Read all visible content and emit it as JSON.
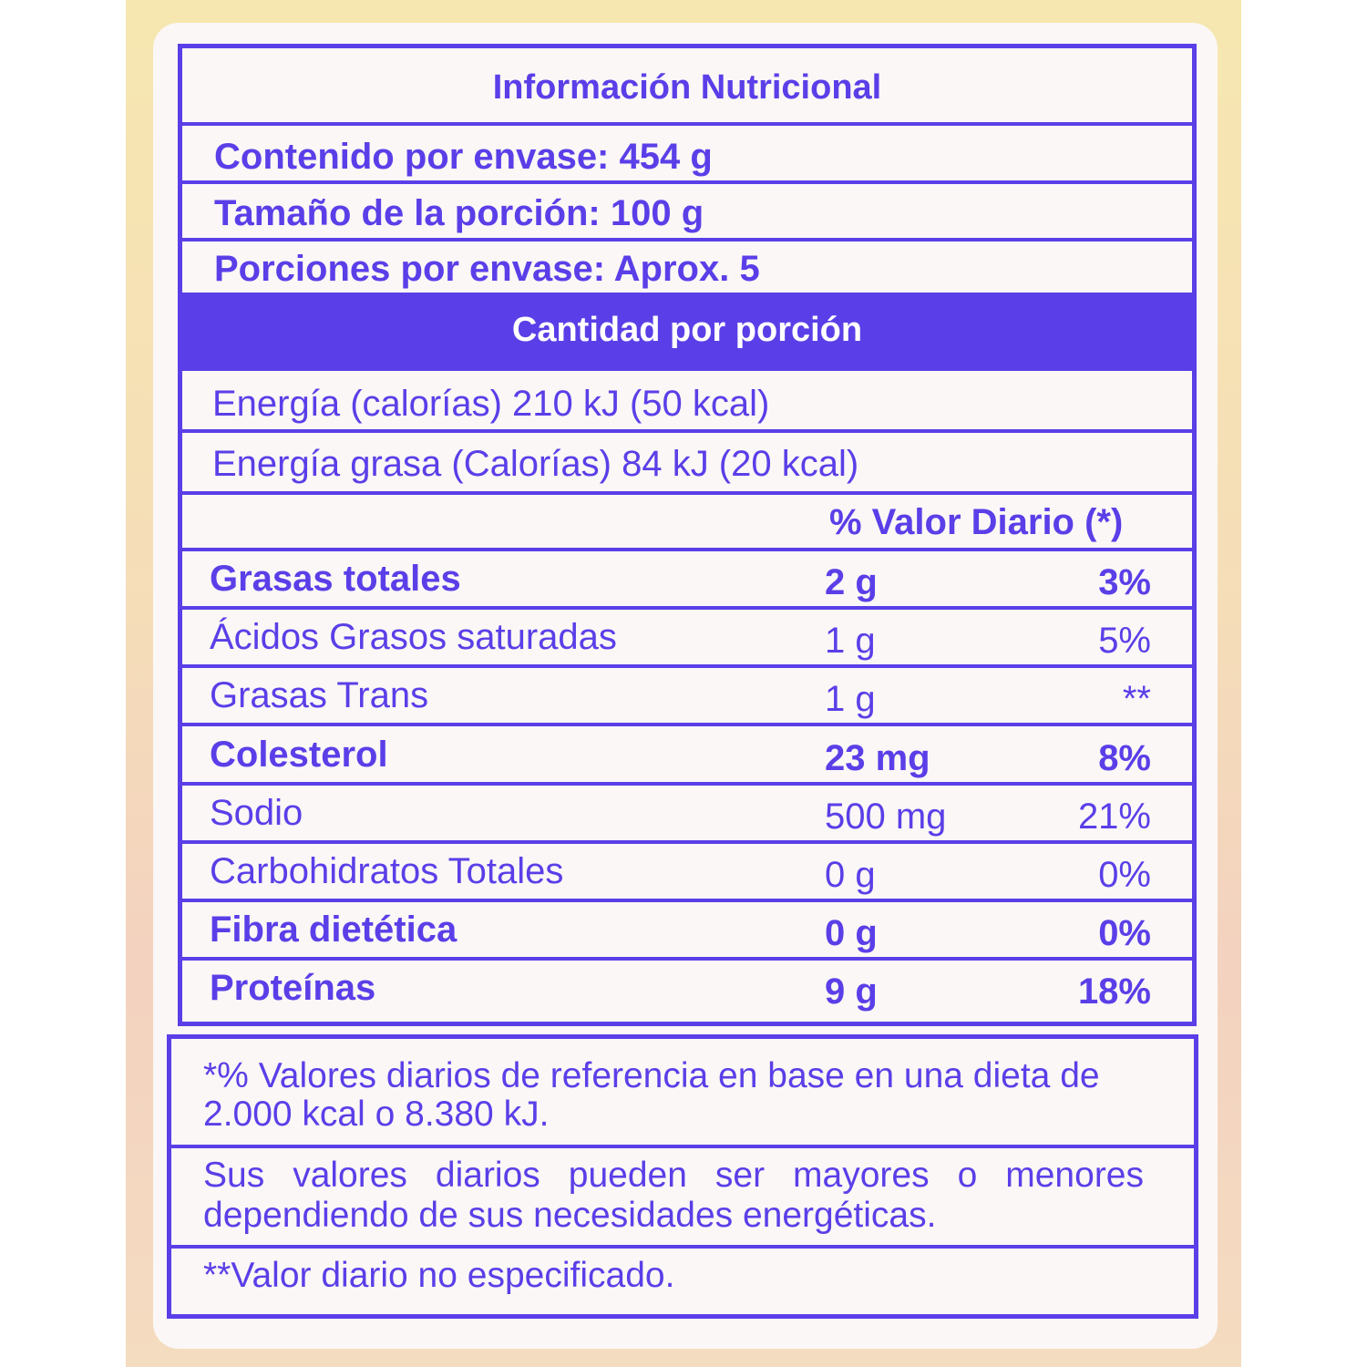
{
  "title": "Información Nutricional",
  "contenido": "Contenido por envase: 454 g",
  "porcion": "Tamaño de la porción: 100 g",
  "porciones": "Porciones por envase: Aprox. 5",
  "cantidad": "Cantidad por porción",
  "energia": "Energía (calorías) 210 kJ (50 kcal)",
  "energia_grasa": "Energía grasa (Calorías) 84 kJ (20 kcal)",
  "vd_header": "% Valor Diario (*)",
  "nutrients": [
    {
      "name": "Grasas totales",
      "amount": "2 g",
      "dv": "3%",
      "bold": true
    },
    {
      "name": "Ácidos Grasos saturadas",
      "amount": "1 g",
      "dv": "5%",
      "bold": false
    },
    {
      "name": "Grasas Trans",
      "amount": "1 g",
      "dv": "**",
      "bold": false
    },
    {
      "name": "Colesterol",
      "amount": "23 mg",
      "dv": "8%",
      "bold": true
    },
    {
      "name": "Sodio",
      "amount": "500 mg",
      "dv": "21%",
      "bold": false
    },
    {
      "name": "Carbohidratos Totales",
      "amount": "0 g",
      "dv": "0%",
      "bold": false
    },
    {
      "name": "Fibra dietética",
      "amount": "0 g",
      "dv": "0%",
      "bold": true
    },
    {
      "name": "Proteínas",
      "amount": "9 g",
      "dv": "18%",
      "bold": true
    }
  ],
  "footnotes": [
    "*% Valores diarios de referencia en base en una dieta de 2.000 kcal o 8.380 kJ.",
    "Sus valores diarios pueden ser mayores o menores dependiendo de sus necesidades energéticas.",
    "**Valor diario no especificado."
  ],
  "colors": {
    "ink": "#5a3fe8"
  }
}
